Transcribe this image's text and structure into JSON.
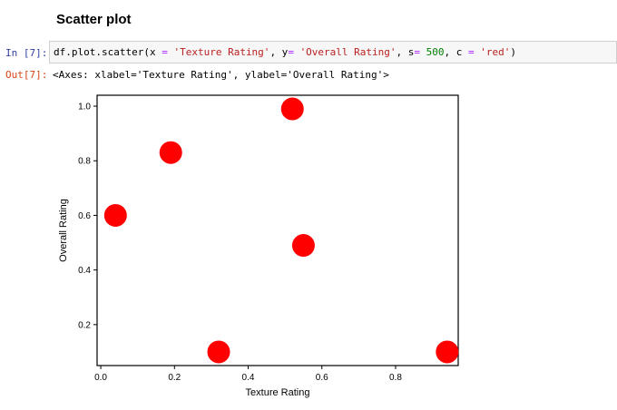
{
  "heading": "Scatter plot",
  "cell": {
    "in_prompt": "In [7]:",
    "out_prompt": "Out[7]:",
    "code_tokens": [
      {
        "t": "df.plot.scatter(x ",
        "c": ""
      },
      {
        "t": "=",
        "c": "op"
      },
      {
        "t": " ",
        "c": ""
      },
      {
        "t": "'Texture Rating'",
        "c": "str"
      },
      {
        "t": ", y",
        "c": ""
      },
      {
        "t": "=",
        "c": "op"
      },
      {
        "t": " ",
        "c": ""
      },
      {
        "t": "'Overall Rating'",
        "c": "str"
      },
      {
        "t": ", s",
        "c": ""
      },
      {
        "t": "=",
        "c": "op"
      },
      {
        "t": " ",
        "c": ""
      },
      {
        "t": "500",
        "c": "num"
      },
      {
        "t": ", c ",
        "c": ""
      },
      {
        "t": "=",
        "c": "op"
      },
      {
        "t": " ",
        "c": ""
      },
      {
        "t": "'red'",
        "c": "str"
      },
      {
        "t": ")",
        "c": ""
      }
    ],
    "output_text": "<Axes: xlabel='Texture Rating', ylabel='Overall Rating'>"
  },
  "chart_data": {
    "type": "scatter",
    "title": "",
    "xlabel": "Texture Rating",
    "ylabel": "Overall Rating",
    "xlim": [
      -0.01,
      0.97
    ],
    "ylim": [
      0.05,
      1.04
    ],
    "xticks": [
      "0.0",
      "0.2",
      "0.4",
      "0.6",
      "0.8"
    ],
    "yticks": [
      "0.2",
      "0.4",
      "0.6",
      "0.8",
      "1.0"
    ],
    "grid": false,
    "color": "#ff0000",
    "points": [
      {
        "x": 0.04,
        "y": 0.6
      },
      {
        "x": 0.19,
        "y": 0.83
      },
      {
        "x": 0.32,
        "y": 0.1
      },
      {
        "x": 0.52,
        "y": 0.99
      },
      {
        "x": 0.55,
        "y": 0.49
      },
      {
        "x": 0.94,
        "y": 0.1
      }
    ]
  }
}
